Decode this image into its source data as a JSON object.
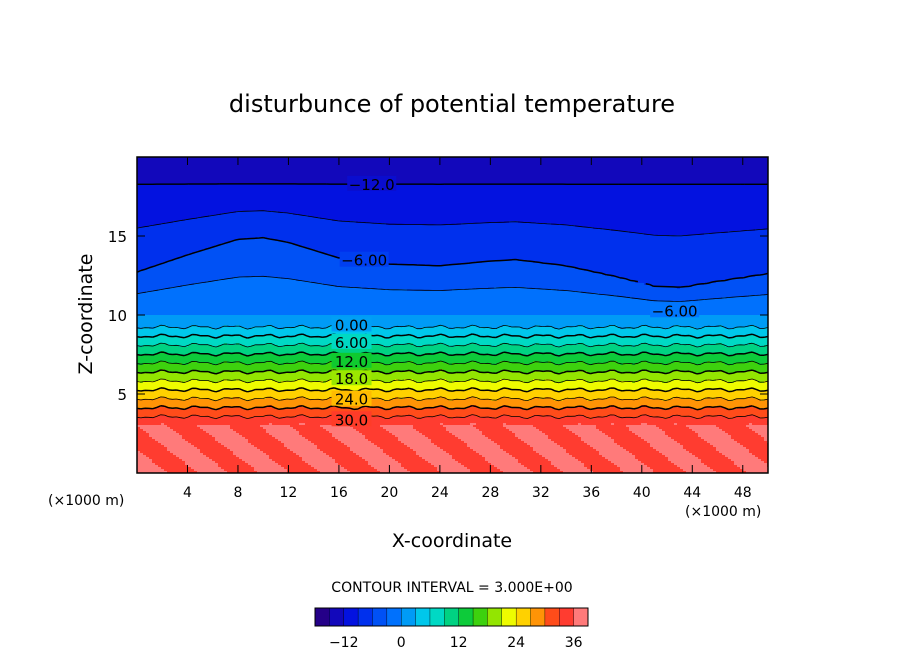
{
  "chart_data": {
    "type": "contour",
    "title": "disturbunce of potential temperature",
    "xlabel": "X-coordinate",
    "ylabel": "Z-coordinate",
    "x_unit_left": "(×1000 m)",
    "x_unit_right": "(×1000 m)",
    "xlim": [
      0,
      50
    ],
    "ylim": [
      0,
      20
    ],
    "x_ticks": [
      4,
      8,
      12,
      16,
      20,
      24,
      28,
      32,
      36,
      40,
      44,
      48
    ],
    "y_ticks": [
      5,
      10,
      15
    ],
    "contour_interval_text": "CONTOUR INTERVAL = 3.000E+00",
    "contour_interval": 3.0,
    "colorbar": {
      "min": -18,
      "max": 39,
      "tick_values": [
        -12,
        0,
        12,
        24,
        36
      ],
      "tick_labels": [
        "−12",
        "0",
        "12",
        "24",
        "36"
      ]
    },
    "value_range": [
      -15,
      36
    ],
    "contour_labels": [
      {
        "text": "−12.0",
        "x": 18.6,
        "z": 18.3
      },
      {
        "text": "−6.00",
        "x": 18.0,
        "z": 13.5
      },
      {
        "text": "−6.00",
        "x": 42.6,
        "z": 10.3
      },
      {
        "text": "0.00",
        "x": 17.0,
        "z": 9.4
      },
      {
        "text": "6.00",
        "x": 17.0,
        "z": 8.3
      },
      {
        "text": "12.0",
        "x": 17.0,
        "z": 7.1
      },
      {
        "text": "18.0",
        "x": 17.0,
        "z": 6.0
      },
      {
        "text": "24.0",
        "x": 17.0,
        "z": 4.7
      },
      {
        "text": "30.0",
        "x": 17.0,
        "z": 3.4
      }
    ]
  }
}
